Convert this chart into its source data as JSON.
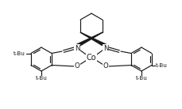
{
  "background_color": "#ffffff",
  "line_color": "#1a1a1a",
  "line_width": 0.85,
  "figsize": [
    2.3,
    1.38
  ],
  "dpi": 100,
  "co_label": "Co",
  "n_label": "N",
  "o_label": "O",
  "tbu_label": "t-Bu",
  "font_size_co": 7.0,
  "font_size_atoms": 6.2,
  "font_size_tbu": 5.2
}
